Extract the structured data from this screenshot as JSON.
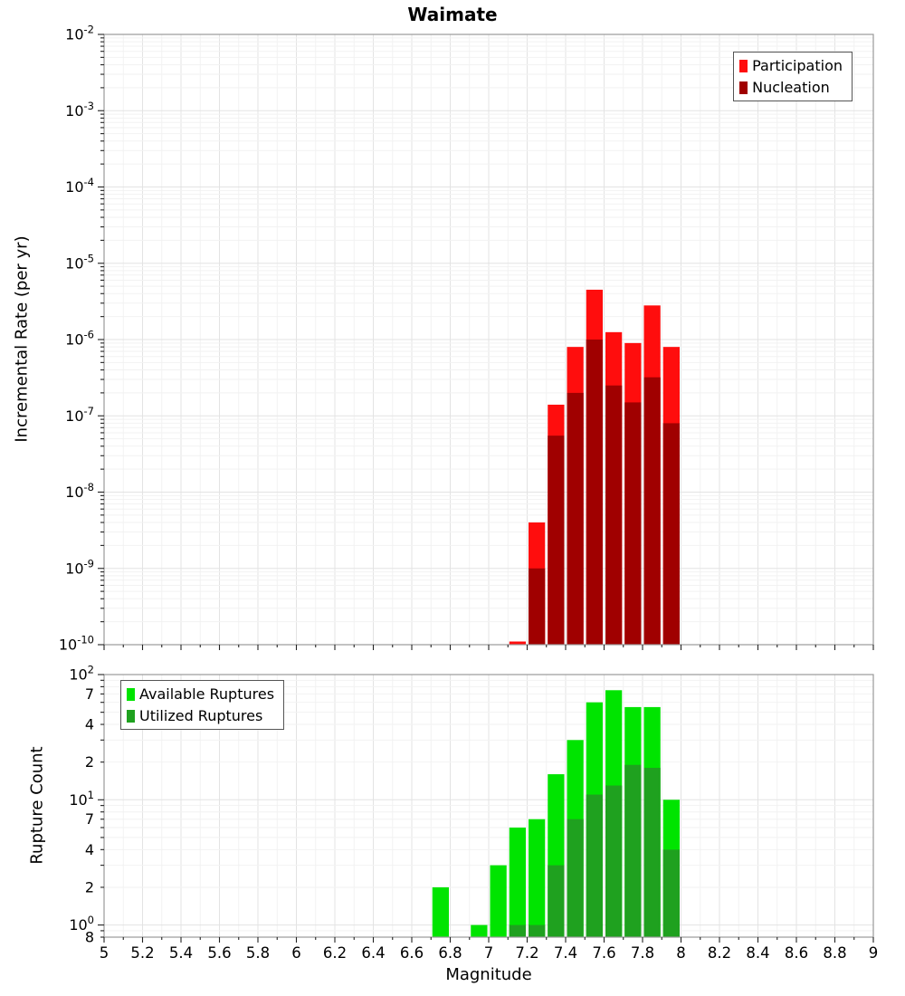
{
  "title": "Waimate",
  "xlabel": "Magnitude",
  "chart_data": [
    {
      "type": "bar",
      "title": "Waimate",
      "ylabel": "Incremental Rate (per yr)",
      "xlabel": "Magnitude",
      "xlim": [
        5,
        9
      ],
      "ylim": [
        1e-10,
        0.01
      ],
      "yscale": "log",
      "grid": true,
      "bar_width": 0.1,
      "x_ticks": [
        5,
        5.2,
        5.4,
        5.6,
        5.8,
        6,
        6.2,
        6.4,
        6.6,
        6.8,
        7,
        7.2,
        7.4,
        7.6,
        7.8,
        8,
        8.2,
        8.4,
        8.6,
        8.8,
        9
      ],
      "x_tick_labels": [
        "5",
        "5.2",
        "5.4",
        "5.6",
        "5.8",
        "6",
        "6.2",
        "6.4",
        "6.6",
        "6.8",
        "7",
        "7.2",
        "7.4",
        "7.6",
        "7.8",
        "8",
        "8.2",
        "8.4",
        "8.6",
        "8.8",
        "9"
      ],
      "y_ticks": [
        {
          "v": 0.01,
          "exp": "-2"
        },
        {
          "v": 0.001,
          "exp": "-3"
        },
        {
          "v": 0.0001,
          "exp": "-4"
        },
        {
          "v": 1e-05,
          "exp": "-5"
        },
        {
          "v": 1e-06,
          "exp": "-6"
        },
        {
          "v": 1e-07,
          "exp": "-7"
        },
        {
          "v": 1e-08,
          "exp": "-8"
        },
        {
          "v": 1e-09,
          "exp": "-9"
        },
        {
          "v": 1e-10,
          "exp": "-10"
        }
      ],
      "legend": {
        "position": "top-right",
        "items": [
          {
            "label": "Participation",
            "color": "#ff0d0d"
          },
          {
            "label": "Nucleation",
            "color": "#a00000"
          }
        ]
      },
      "series": [
        {
          "name": "Participation",
          "color": "#ff0d0d",
          "x": [
            7.15,
            7.25,
            7.35,
            7.45,
            7.55,
            7.65,
            7.75,
            7.85,
            7.95
          ],
          "values": [
            1.1e-10,
            4e-09,
            1.4e-07,
            8e-07,
            4.5e-06,
            1.25e-06,
            9e-07,
            2.8e-06,
            8e-07
          ]
        },
        {
          "name": "Nucleation",
          "color": "#a00000",
          "x": [
            7.25,
            7.35,
            7.45,
            7.55,
            7.65,
            7.75,
            7.85,
            7.95
          ],
          "values": [
            1e-09,
            5.5e-08,
            2e-07,
            1e-06,
            2.5e-07,
            1.5e-07,
            3.2e-07,
            8e-08
          ]
        }
      ]
    },
    {
      "type": "bar",
      "ylabel": "Rupture Count",
      "xlabel": "Magnitude",
      "xlim": [
        5,
        9
      ],
      "ylim": [
        0.8,
        100
      ],
      "yscale": "log",
      "grid": true,
      "bar_width": 0.1,
      "x_ticks": [
        5,
        5.2,
        5.4,
        5.6,
        5.8,
        6,
        6.2,
        6.4,
        6.6,
        6.8,
        7,
        7.2,
        7.4,
        7.6,
        7.8,
        8,
        8.2,
        8.4,
        8.6,
        8.8,
        9
      ],
      "x_tick_labels": [
        "5",
        "5.2",
        "5.4",
        "5.6",
        "5.8",
        "6",
        "6.2",
        "6.4",
        "6.6",
        "6.8",
        "7",
        "7.2",
        "7.4",
        "7.6",
        "7.8",
        "8",
        "8.2",
        "8.4",
        "8.6",
        "8.8",
        "9"
      ],
      "y_ticks": [
        {
          "v": 100,
          "exp": "2"
        },
        {
          "v": 70,
          "text": "7"
        },
        {
          "v": 40,
          "text": "4"
        },
        {
          "v": 20,
          "text": "2"
        },
        {
          "v": 10,
          "exp": "1"
        },
        {
          "v": 7,
          "text": "7"
        },
        {
          "v": 4,
          "text": "4"
        },
        {
          "v": 2,
          "text": "2"
        },
        {
          "v": 1,
          "exp": "0"
        },
        {
          "v": 0.8,
          "text": "8"
        }
      ],
      "legend": {
        "position": "top-left",
        "items": [
          {
            "label": "Available Ruptures",
            "color": "#00e400"
          },
          {
            "label": "Utilized Ruptures",
            "color": "#1fa11f"
          }
        ]
      },
      "series": [
        {
          "name": "Available Ruptures",
          "color": "#00e400",
          "x": [
            6.75,
            6.95,
            7.05,
            7.15,
            7.25,
            7.35,
            7.45,
            7.55,
            7.65,
            7.75,
            7.85,
            7.95
          ],
          "values": [
            2,
            1,
            3,
            6,
            7,
            16,
            30,
            60,
            75,
            55,
            55,
            10
          ]
        },
        {
          "name": "Utilized Ruptures",
          "color": "#1fa11f",
          "x": [
            7.15,
            7.25,
            7.35,
            7.45,
            7.55,
            7.65,
            7.75,
            7.85,
            7.95
          ],
          "values": [
            1,
            1,
            3,
            7,
            11,
            13,
            19,
            18,
            4
          ]
        }
      ]
    }
  ]
}
